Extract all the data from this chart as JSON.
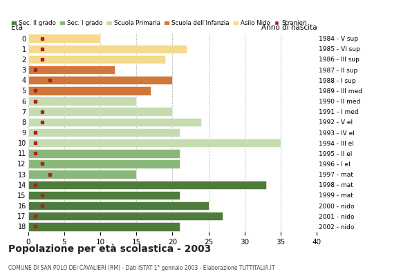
{
  "ages": [
    18,
    17,
    16,
    15,
    14,
    13,
    12,
    11,
    10,
    9,
    8,
    7,
    6,
    5,
    4,
    3,
    2,
    1,
    0
  ],
  "years": [
    "1984 - V sup",
    "1985 - VI sup",
    "1986 - III sup",
    "1987 - II sup",
    "1988 - I sup",
    "1989 - III med",
    "1990 - II med",
    "1991 - I med",
    "1992 - V el",
    "1993 - IV el",
    "1994 - III el",
    "1995 - II el",
    "1996 - I el",
    "1997 - mat",
    "1998 - mat",
    "1999 - mat",
    "2000 - nido",
    "2001 - nido",
    "2002 - nido"
  ],
  "values": [
    21,
    27,
    25,
    21,
    33,
    15,
    21,
    21,
    35,
    21,
    24,
    20,
    15,
    17,
    20,
    12,
    19,
    22,
    10
  ],
  "stranieri": [
    1,
    1,
    2,
    2,
    1,
    3,
    2,
    1,
    1,
    1,
    2,
    2,
    1,
    1,
    3,
    1,
    2,
    2,
    2
  ],
  "bar_colors": [
    "#4d7c3b",
    "#4d7c3b",
    "#4d7c3b",
    "#4d7c3b",
    "#4d7c3b",
    "#8ab87a",
    "#8ab87a",
    "#8ab87a",
    "#c5dbb0",
    "#c5dbb0",
    "#c5dbb0",
    "#c5dbb0",
    "#c5dbb0",
    "#d2773a",
    "#d2773a",
    "#d2773a",
    "#f5d98c",
    "#f5d98c",
    "#f5d98c"
  ],
  "legend_labels": [
    "Sec. II grado",
    "Sec. I grado",
    "Scuola Primaria",
    "Scuola dell'Infanzia",
    "Asilo Nido",
    "Stranieri"
  ],
  "legend_colors": [
    "#4d7c3b",
    "#8ab87a",
    "#c5dbb0",
    "#d2773a",
    "#f5d98c",
    "#aa2222"
  ],
  "stranieri_color": "#aa2222",
  "xlim": [
    0,
    40
  ],
  "xticks": [
    0,
    5,
    10,
    15,
    20,
    25,
    30,
    35,
    40
  ],
  "title": "Popolazione per età scolastica - 2003",
  "subtitle": "COMUNE DI SAN POLO DEI CAVALIERI (RM) - Dati ISTAT 1° gennaio 2003 - Elaborazione TUTTITALIA.IT",
  "ylabel_left": "Età",
  "ylabel_right": "Anno di nascita",
  "background_color": "#ffffff",
  "grid_color": "#bbbbbb"
}
